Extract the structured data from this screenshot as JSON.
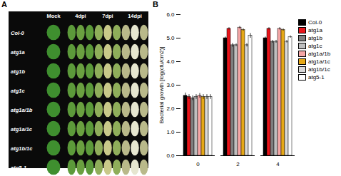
{
  "panel_labels": [
    "A",
    "B"
  ],
  "photo_panel": {
    "columns": [
      "Mock",
      "4dpi",
      "7dpi",
      "14dpi"
    ],
    "rows": [
      "Col-0",
      "atg1a",
      "atg1b",
      "atg1c",
      "atg1a/1b",
      "atg1a/1c",
      "atg1b/1c",
      "atg5-1"
    ]
  },
  "chart_data": {
    "type": "bar",
    "ylabel": "Bacterial growth [log(cfu/cm2)]",
    "categories": [
      "0",
      "2",
      "4"
    ],
    "ylim": [
      0,
      6
    ],
    "yticks": [
      0,
      1,
      2,
      3,
      4,
      5,
      6
    ],
    "legend": "right",
    "series": [
      {
        "name": "Col-0",
        "color": "#000000",
        "values": [
          2.55,
          5.0,
          5.0
        ],
        "errors": [
          0.12,
          0.05,
          0.05
        ]
      },
      {
        "name": "atg1a",
        "color": "#e8151b",
        "values": [
          2.5,
          5.4,
          5.4
        ],
        "errors": [
          0.1,
          0.05,
          0.05
        ]
      },
      {
        "name": "atg1b",
        "color": "#7f7f7f",
        "values": [
          2.45,
          4.7,
          4.85
        ],
        "errors": [
          0.1,
          0.08,
          0.06
        ]
      },
      {
        "name": "atg1c",
        "color": "#bfbfbf",
        "values": [
          2.5,
          4.7,
          4.85
        ],
        "errors": [
          0.1,
          0.06,
          0.06
        ]
      },
      {
        "name": "atg1a/1b",
        "color": "#f4a6a6",
        "values": [
          2.55,
          5.45,
          5.4
        ],
        "errors": [
          0.1,
          0.05,
          0.05
        ]
      },
      {
        "name": "atg1a/1c",
        "color": "#e6a817",
        "values": [
          2.5,
          5.35,
          5.35
        ],
        "errors": [
          0.1,
          0.05,
          0.05
        ]
      },
      {
        "name": "atg1b/1c",
        "color": "#d9d9d9",
        "values": [
          2.5,
          4.7,
          4.85
        ],
        "errors": [
          0.1,
          0.07,
          0.05
        ]
      },
      {
        "name": "atg5-1",
        "color": "#ffffff",
        "values": [
          2.5,
          5.1,
          5.05
        ],
        "errors": [
          0.1,
          0.1,
          0.05
        ]
      }
    ]
  }
}
